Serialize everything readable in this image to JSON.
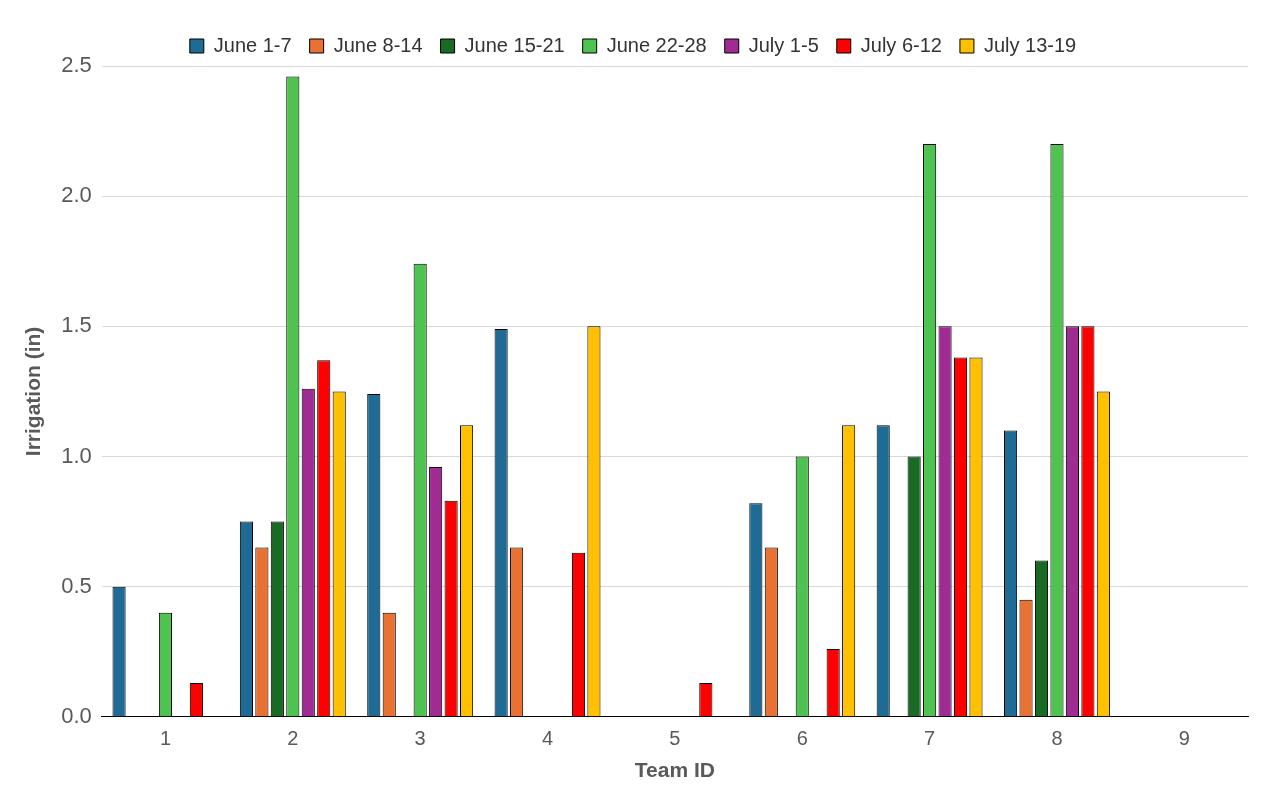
{
  "chart_data": {
    "type": "bar",
    "xlabel": "Team ID",
    "ylabel": "Irrigation (in)",
    "categories": [
      "1",
      "2",
      "3",
      "4",
      "5",
      "6",
      "7",
      "8",
      "9"
    ],
    "ylim": [
      0,
      2.5
    ],
    "yticks": [
      {
        "value": 0,
        "label": "0.0"
      },
      {
        "value": 0.5,
        "label": "0.5"
      },
      {
        "value": 1,
        "label": "1.0"
      },
      {
        "value": 1.5,
        "label": "1.5"
      },
      {
        "value": 2,
        "label": "2.0"
      },
      {
        "value": 2.5,
        "label": "2.5"
      }
    ],
    "grid": "y",
    "legend": "top",
    "series": [
      {
        "name": "June 1-7",
        "color": "#1e6b96",
        "values": [
          0.5,
          0.75,
          1.24,
          1.49,
          null,
          0.82,
          1.12,
          1.1,
          null
        ]
      },
      {
        "name": "June 8-14",
        "color": "#e97132",
        "values": [
          null,
          0.65,
          0.4,
          0.65,
          null,
          0.65,
          null,
          0.45,
          null
        ]
      },
      {
        "name": "June 15-21",
        "color": "#196b24",
        "values": [
          null,
          0.75,
          null,
          null,
          null,
          null,
          1.0,
          0.6,
          null
        ]
      },
      {
        "name": "June 22-28",
        "color": "#4fc34f",
        "values": [
          0.4,
          2.46,
          1.74,
          null,
          null,
          1.0,
          2.2,
          2.2,
          null
        ]
      },
      {
        "name": "July 1-5",
        "color": "#a02b93",
        "values": [
          null,
          1.26,
          0.96,
          null,
          null,
          null,
          1.5,
          1.5,
          null
        ]
      },
      {
        "name": "July 6-12",
        "color": "#ff0000",
        "values": [
          0.13,
          1.37,
          0.83,
          0.63,
          0.13,
          0.26,
          1.38,
          1.5,
          null
        ]
      },
      {
        "name": "July 13-19",
        "color": "#ffc000",
        "values": [
          null,
          1.25,
          1.12,
          1.5,
          null,
          1.12,
          1.38,
          1.25,
          null
        ]
      }
    ]
  }
}
